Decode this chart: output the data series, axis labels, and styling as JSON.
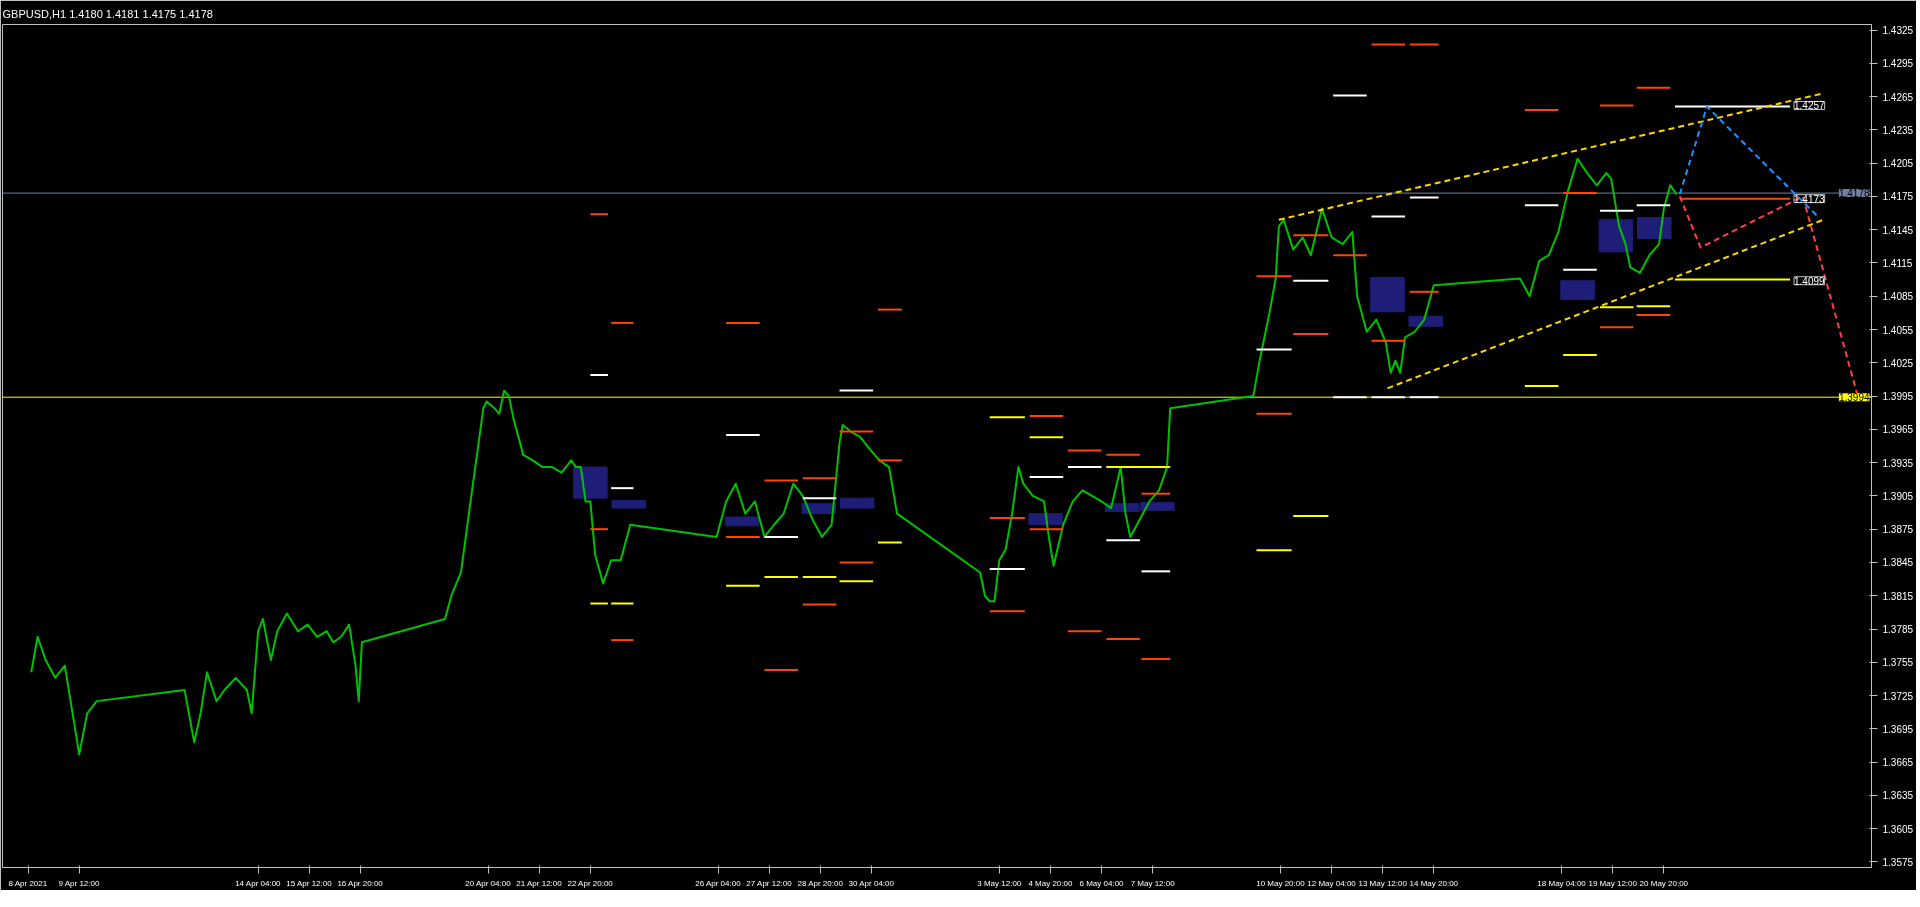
{
  "chart_data": {
    "type": "line",
    "title": "GBPUSD,H1  1.4180 1.4181 1.4175 1.4178",
    "xlim": [
      "2021-04-07T12:00",
      "2021-05-26T06:00"
    ],
    "ylim": [
      1.357,
      1.433
    ],
    "xticks": [
      {
        "value": "2021-04-08T04:00",
        "label": "8 Apr 2021"
      },
      {
        "value": "2021-04-09T12:00",
        "label": "9 Apr 12:00"
      },
      {
        "value": "2021-04-14T04:00",
        "label": "14 Apr 04:00"
      },
      {
        "value": "2021-04-15T12:00",
        "label": "15 Apr 12:00"
      },
      {
        "value": "2021-04-16T20:00",
        "label": "16 Apr 20:00"
      },
      {
        "value": "2021-04-20T04:00",
        "label": "20 Apr 04:00"
      },
      {
        "value": "2021-04-21T12:00",
        "label": "21 Apr 12:00"
      },
      {
        "value": "2021-04-22T20:00",
        "label": "22 Apr 20:00"
      },
      {
        "value": "2021-04-26T04:00",
        "label": "26 Apr 04:00"
      },
      {
        "value": "2021-04-27T12:00",
        "label": "27 Apr 12:00"
      },
      {
        "value": "2021-04-28T20:00",
        "label": "28 Apr 20:00"
      },
      {
        "value": "2021-04-30T04:00",
        "label": "30 Apr 04:00"
      },
      {
        "value": "2021-05-03T12:00",
        "label": "3 May 12:00"
      },
      {
        "value": "2021-05-04T20:00",
        "label": "4 May 20:00"
      },
      {
        "value": "2021-05-06T04:00",
        "label": "6 May 04:00"
      },
      {
        "value": "2021-05-07T12:00",
        "label": "7 May 12:00"
      },
      {
        "value": "2021-05-10T20:00",
        "label": "10 May 20:00"
      },
      {
        "value": "2021-05-12T04:00",
        "label": "12 May 04:00"
      },
      {
        "value": "2021-05-13T12:00",
        "label": "13 May 12:00"
      },
      {
        "value": "2021-05-14T20:00",
        "label": "14 May 20:00"
      },
      {
        "value": "2021-05-18T04:00",
        "label": "18 May 04:00"
      },
      {
        "value": "2021-05-19T12:00",
        "label": "19 May 12:00"
      },
      {
        "value": "2021-05-20T20:00",
        "label": "20 May 20:00"
      }
    ],
    "yticks": [
      1.3575,
      1.3605,
      1.3635,
      1.3665,
      1.3695,
      1.3725,
      1.3755,
      1.3785,
      1.3815,
      1.3845,
      1.3875,
      1.3905,
      1.3935,
      1.3965,
      1.3995,
      1.4025,
      1.4055,
      1.4085,
      1.4115,
      1.4145,
      1.4175,
      1.4205,
      1.4235,
      1.4265,
      1.4295,
      1.4325
    ],
    "ref_lines": [
      {
        "axis": "y",
        "value": 1.3994,
        "label": "1.3994",
        "color": "#ffff00"
      },
      {
        "axis": "y",
        "value": 1.4178,
        "label": "1.4178",
        "color": "#7080a0"
      }
    ],
    "annotations": [
      {
        "text": "1.4257",
        "x": "2021-05-24T03:00",
        "y": 1.4257
      },
      {
        "text": "1.4173",
        "x": "2021-05-24T03:00",
        "y": 1.4173
      },
      {
        "text": "1.4099",
        "x": "2021-05-24T03:00",
        "y": 1.4099
      }
    ],
    "series": [
      {
        "type": "bar",
        "color": "#1e1e78",
        "x": [
          "2021-04-22T20:00",
          "2021-04-23T20:00",
          "2021-04-26T19:00",
          "2021-04-28T19:00",
          "2021-04-29T19:00",
          "2021-05-04T17:00",
          "2021-05-06T17:00",
          "2021-05-07T15:00",
          "2021-05-13T15:00",
          "2021-05-14T15:00",
          "2021-05-18T14:00",
          "2021-05-19T14:00",
          "2021-05-20T14:00"
        ],
        "base": [
          1.3903,
          1.3894,
          1.3878,
          1.3889,
          1.3894,
          1.3879,
          1.3891,
          1.3892,
          1.4071,
          1.4058,
          1.4082,
          1.4125,
          1.4137
        ],
        "values": [
          0.0028,
          0.0007,
          0.0008,
          0.0009,
          0.0009,
          0.001,
          0.0007,
          0.0007,
          0.0031,
          0.0009,
          0.0017,
          0.0029,
          0.0019
        ]
      },
      {
        "color": "#00c000",
        "x": [
          "2021-04-08T06:00",
          "2021-04-08T10:00",
          "2021-04-08T15:00",
          "2021-04-08T21:00",
          "2021-04-09T03:00",
          "2021-04-09T09:00",
          "2021-04-09T12:00",
          "2021-04-09T17:00",
          "2021-04-09T23:00",
          "2021-04-12T06:00",
          "2021-04-12T12:00",
          "2021-04-12T16:00",
          "2021-04-12T20:00",
          "2021-04-13T02:00",
          "2021-04-13T07:00",
          "2021-04-13T14:00",
          "2021-04-13T21:00",
          "2021-04-14T00:00",
          "2021-04-14T04:00",
          "2021-04-14T07:00",
          "2021-04-14T12:00",
          "2021-04-14T16:00",
          "2021-04-14T22:00",
          "2021-04-15T05:00",
          "2021-04-15T11:00",
          "2021-04-15T17:00",
          "2021-04-15T23:00",
          "2021-04-16T03:00",
          "2021-04-16T08:00",
          "2021-04-16T13:00",
          "2021-04-16T17:00",
          "2021-04-16T19:00",
          "2021-04-16T21:00",
          "2021-04-19T01:00",
          "2021-04-19T05:00",
          "2021-04-19T11:00",
          "2021-04-19T17:00",
          "2021-04-19T21:00",
          "2021-04-20T01:00",
          "2021-04-20T03:00",
          "2021-04-20T08:00",
          "2021-04-20T11:00",
          "2021-04-20T14:00",
          "2021-04-20T17:00",
          "2021-04-20T20:00",
          "2021-04-21T02:00",
          "2021-04-21T08:00",
          "2021-04-21T14:00",
          "2021-04-21T20:00",
          "2021-04-22T02:00",
          "2021-04-22T08:00",
          "2021-04-22T11:00",
          "2021-04-22T14:00",
          "2021-04-22T17:00",
          "2021-04-22T20:00",
          "2021-04-22T23:00",
          "2021-04-23T04:00",
          "2021-04-23T09:00",
          "2021-04-23T15:00",
          "2021-04-23T21:00",
          "2021-04-26T03:00",
          "2021-04-26T09:00",
          "2021-04-26T15:00",
          "2021-04-26T21:00",
          "2021-04-27T03:00",
          "2021-04-27T09:00",
          "2021-04-27T15:00",
          "2021-04-27T21:00",
          "2021-04-28T03:00",
          "2021-04-28T09:00",
          "2021-04-28T15:00",
          "2021-04-28T21:00",
          "2021-04-29T03:00",
          "2021-04-29T08:00",
          "2021-04-29T10:00",
          "2021-04-29T15:00",
          "2021-04-29T21:00",
          "2021-04-30T03:00",
          "2021-04-30T09:00",
          "2021-04-30T15:00",
          "2021-04-30T20:00",
          "2021-05-03T00:00",
          "2021-05-03T03:00",
          "2021-05-03T06:00",
          "2021-05-03T09:00",
          "2021-05-03T12:00",
          "2021-05-03T16:00",
          "2021-05-03T20:00",
          "2021-05-04T00:00",
          "2021-05-04T03:00",
          "2021-05-04T09:00",
          "2021-05-04T16:00",
          "2021-05-04T19:00",
          "2021-05-04T22:00",
          "2021-05-05T04:00",
          "2021-05-05T10:00",
          "2021-05-05T16:00",
          "2021-05-05T22:00",
          "2021-05-06T04:00",
          "2021-05-06T10:00",
          "2021-05-06T16:00",
          "2021-05-06T19:00",
          "2021-05-06T22:00",
          "2021-05-07T04:00",
          "2021-05-07T10:00",
          "2021-05-07T16:00",
          "2021-05-07T21:00",
          "2021-05-07T23:00",
          "2021-05-10T03:00",
          "2021-05-10T07:00",
          "2021-05-10T10:00",
          "2021-05-10T13:00",
          "2021-05-10T17:00",
          "2021-05-10T19:00",
          "2021-05-10T22:00",
          "2021-05-11T04:00",
          "2021-05-11T10:00",
          "2021-05-11T15:00",
          "2021-05-11T22:00",
          "2021-05-12T04:00",
          "2021-05-12T11:00",
          "2021-05-12T17:00",
          "2021-05-12T20:00",
          "2021-05-13T02:00",
          "2021-05-13T08:00",
          "2021-05-13T14:00",
          "2021-05-13T17:00",
          "2021-05-13T20:00",
          "2021-05-13T23:00",
          "2021-05-14T02:00",
          "2021-05-14T08:00",
          "2021-05-14T14:00",
          "2021-05-14T20:00",
          "2021-05-17T02:00",
          "2021-05-17T08:00",
          "2021-05-17T14:00",
          "2021-05-17T20:00",
          "2021-05-18T02:00",
          "2021-05-18T08:00",
          "2021-05-18T14:00",
          "2021-05-18T20:00",
          "2021-05-19T02:00",
          "2021-05-19T08:00",
          "2021-05-19T11:00",
          "2021-05-19T16:00",
          "2021-05-19T20:00",
          "2021-05-19T23:00",
          "2021-05-20T05:00",
          "2021-05-20T11:00",
          "2021-05-20T17:00",
          "2021-05-20T20:00",
          "2021-05-21T00:00",
          "2021-05-21T04:00"
        ],
        "values": [
          1.3746,
          1.3778,
          1.3757,
          1.3741,
          1.3752,
          1.3699,
          1.3672,
          1.3709,
          1.372,
          1.373,
          1.3683,
          1.3709,
          1.3746,
          1.372,
          1.373,
          1.3741,
          1.373,
          1.3709,
          1.3783,
          1.3794,
          1.3757,
          1.3783,
          1.3799,
          1.3783,
          1.3789,
          1.3778,
          1.3783,
          1.3773,
          1.3778,
          1.3789,
          1.3752,
          1.372,
          1.3773,
          1.3794,
          1.3815,
          1.3836,
          1.39,
          1.3942,
          1.3984,
          1.399,
          1.3984,
          1.3979,
          1.4,
          1.3995,
          1.3974,
          1.3942,
          1.3937,
          1.3931,
          1.3931,
          1.3926,
          1.3937,
          1.3931,
          1.3931,
          1.39,
          1.39,
          1.3852,
          1.3826,
          1.3847,
          1.3847,
          1.3879,
          1.3868,
          1.39,
          1.3916,
          1.3889,
          1.39,
          1.3868,
          1.3879,
          1.3889,
          1.3916,
          1.3905,
          1.3884,
          1.3868,
          1.3879,
          1.3953,
          1.3969,
          1.3963,
          1.3958,
          1.3947,
          1.3937,
          1.3931,
          1.3889,
          1.3836,
          1.3815,
          1.381,
          1.381,
          1.3847,
          1.3857,
          1.3889,
          1.3931,
          1.3916,
          1.3905,
          1.39,
          1.3868,
          1.3842,
          1.3879,
          1.39,
          1.391,
          1.3905,
          1.39,
          1.3894,
          1.3931,
          1.3889,
          1.3868,
          1.3884,
          1.39,
          1.391,
          1.3931,
          1.3984,
          1.3995,
          1.4027,
          1.4048,
          1.4069,
          1.4101,
          1.4148,
          1.4154,
          1.4127,
          1.4138,
          1.4122,
          1.4164,
          1.4138,
          1.4132,
          1.4143,
          1.4085,
          1.4053,
          1.4064,
          1.4043,
          1.4016,
          1.4027,
          1.4016,
          1.4048,
          1.4053,
          1.4064,
          1.4095,
          1.4101,
          1.4085,
          1.4117,
          1.4122,
          1.4143,
          1.418,
          1.4209,
          1.4196,
          1.4185,
          1.4196,
          1.4191,
          1.4148,
          1.4132,
          1.4111,
          1.4106,
          1.4122,
          1.4132,
          1.4164,
          1.4185,
          1.4177
        ]
      },
      {
        "type": "line",
        "color": "#ff4500",
        "x": [
          "2021-04-22T20:00",
          "2021-04-23T07:00"
        ],
        "values": [
          1.4159,
          1.4159
        ]
      },
      {
        "type": "line",
        "color": "#ff4500",
        "x": [
          "2021-04-22T20:00",
          "2021-04-23T07:00"
        ],
        "values": [
          1.3875,
          1.3875
        ]
      },
      {
        "type": "line",
        "color": "#ff4500",
        "x": [
          "2021-04-23T09:00",
          "2021-04-23T23:00"
        ],
        "values": [
          1.4061,
          1.4061
        ]
      },
      {
        "type": "line",
        "color": "#ff4500",
        "x": [
          "2021-04-23T09:00",
          "2021-04-23T23:00"
        ],
        "values": [
          1.3775,
          1.3775
        ]
      },
      {
        "type": "line",
        "color": "#ff4500",
        "x": [
          "2021-04-26T09:00",
          "2021-04-27T06:00"
        ],
        "values": [
          1.4061,
          1.4061
        ]
      },
      {
        "type": "line",
        "color": "#ff4500",
        "x": [
          "2021-04-26T09:00",
          "2021-04-27T06:00"
        ],
        "values": [
          1.3868,
          1.3868
        ]
      },
      {
        "type": "line",
        "color": "#ff4500",
        "x": [
          "2021-04-27T09:00",
          "2021-04-28T06:00"
        ],
        "values": [
          1.3919,
          1.3919
        ]
      },
      {
        "type": "line",
        "color": "#ff4500",
        "x": [
          "2021-04-27T09:00",
          "2021-04-28T06:00"
        ],
        "values": [
          1.3748,
          1.3748
        ]
      },
      {
        "type": "line",
        "color": "#ff4500",
        "x": [
          "2021-04-28T09:00",
          "2021-04-29T06:00"
        ],
        "values": [
          1.3921,
          1.3921
        ]
      },
      {
        "type": "line",
        "color": "#ff4500",
        "x": [
          "2021-04-28T09:00",
          "2021-04-29T06:00"
        ],
        "values": [
          1.3807,
          1.3807
        ]
      },
      {
        "type": "line",
        "color": "#ff4500",
        "x": [
          "2021-04-29T08:00",
          "2021-04-30T05:00"
        ],
        "values": [
          1.3963,
          1.3963
        ]
      },
      {
        "type": "line",
        "color": "#ff4500",
        "x": [
          "2021-04-29T08:00",
          "2021-04-30T05:00"
        ],
        "values": [
          1.3845,
          1.3845
        ]
      },
      {
        "type": "line",
        "color": "#ff4500",
        "x": [
          "2021-04-30T08:00",
          "2021-04-30T23:00"
        ],
        "values": [
          1.4073,
          1.4073
        ]
      },
      {
        "type": "line",
        "color": "#ff4500",
        "x": [
          "2021-04-30T08:00",
          "2021-04-30T23:00"
        ],
        "values": [
          1.3937,
          1.3937
        ]
      },
      {
        "type": "line",
        "color": "#ff4500",
        "x": [
          "2021-05-03T06:00",
          "2021-05-04T04:00"
        ],
        "values": [
          1.3885,
          1.3885
        ]
      },
      {
        "type": "line",
        "color": "#ff4500",
        "x": [
          "2021-05-03T06:00",
          "2021-05-04T04:00"
        ],
        "values": [
          1.3801,
          1.3801
        ]
      },
      {
        "type": "line",
        "color": "#ff4500",
        "x": [
          "2021-05-04T07:00",
          "2021-05-05T04:00"
        ],
        "values": [
          1.3977,
          1.3977
        ]
      },
      {
        "type": "line",
        "color": "#ff4500",
        "x": [
          "2021-05-04T07:00",
          "2021-05-05T04:00"
        ],
        "values": [
          1.3875,
          1.3875
        ]
      },
      {
        "type": "line",
        "color": "#ff4500",
        "x": [
          "2021-05-05T07:00",
          "2021-05-06T04:00"
        ],
        "values": [
          1.3946,
          1.3946
        ]
      },
      {
        "type": "line",
        "color": "#ff4500",
        "x": [
          "2021-05-05T07:00",
          "2021-05-06T04:00"
        ],
        "values": [
          1.3783,
          1.3783
        ]
      },
      {
        "type": "line",
        "color": "#ff4500",
        "x": [
          "2021-05-06T07:00",
          "2021-05-07T04:00"
        ],
        "values": [
          1.3942,
          1.3942
        ]
      },
      {
        "type": "line",
        "color": "#ff4500",
        "x": [
          "2021-05-06T07:00",
          "2021-05-07T04:00"
        ],
        "values": [
          1.3776,
          1.3776
        ]
      },
      {
        "type": "line",
        "color": "#ff4500",
        "x": [
          "2021-05-07T05:00",
          "2021-05-07T23:00"
        ],
        "values": [
          1.3907,
          1.3907
        ]
      },
      {
        "type": "line",
        "color": "#ff4500",
        "x": [
          "2021-05-07T05:00",
          "2021-05-07T23:00"
        ],
        "values": [
          1.3758,
          1.3758
        ]
      },
      {
        "type": "line",
        "color": "#ff4500",
        "x": [
          "2021-05-10T05:00",
          "2021-05-11T03:00"
        ],
        "values": [
          1.3979,
          1.3979
        ]
      },
      {
        "type": "line",
        "color": "#ff4500",
        "x": [
          "2021-05-10T05:00",
          "2021-05-11T03:00"
        ],
        "values": [
          1.4103,
          1.4103
        ]
      },
      {
        "type": "line",
        "color": "#ff4500",
        "x": [
          "2021-05-11T04:00",
          "2021-05-12T02:00"
        ],
        "values": [
          1.4051,
          1.4051
        ]
      },
      {
        "type": "line",
        "color": "#ff4500",
        "x": [
          "2021-05-11T04:00",
          "2021-05-12T02:00"
        ],
        "values": [
          1.414,
          1.414
        ]
      },
      {
        "type": "line",
        "color": "#ff4500",
        "x": [
          "2021-05-12T05:00",
          "2021-05-13T02:00"
        ],
        "values": [
          1.4122,
          1.4122
        ]
      },
      {
        "type": "line",
        "color": "#ff4500",
        "x": [
          "2021-05-13T05:00",
          "2021-05-14T02:00"
        ],
        "values": [
          1.4312,
          1.4312
        ]
      },
      {
        "type": "line",
        "color": "#ff4500",
        "x": [
          "2021-05-13T05:00",
          "2021-05-14T02:00"
        ],
        "values": [
          1.4045,
          1.4045
        ]
      },
      {
        "type": "line",
        "color": "#ff4500",
        "x": [
          "2021-05-14T05:00",
          "2021-05-14T23:00"
        ],
        "values": [
          1.4312,
          1.4312
        ]
      },
      {
        "type": "line",
        "color": "#ff4500",
        "x": [
          "2021-05-14T05:00",
          "2021-05-14T23:00"
        ],
        "values": [
          1.4089,
          1.4089
        ]
      },
      {
        "type": "line",
        "color": "#ff4500",
        "x": [
          "2021-05-17T05:00",
          "2021-05-18T02:00"
        ],
        "values": [
          1.4253,
          1.4253
        ]
      },
      {
        "type": "line",
        "color": "#ff4500",
        "x": [
          "2021-05-18T05:00",
          "2021-05-19T02:00"
        ],
        "values": [
          1.4178,
          1.4178
        ]
      },
      {
        "type": "line",
        "color": "#ff4500",
        "x": [
          "2021-05-19T04:00",
          "2021-05-20T01:00"
        ],
        "values": [
          1.4257,
          1.4257
        ]
      },
      {
        "type": "line",
        "color": "#ff4500",
        "x": [
          "2021-05-19T04:00",
          "2021-05-20T01:00"
        ],
        "values": [
          1.4057,
          1.4057
        ]
      },
      {
        "type": "line",
        "color": "#ff4500",
        "x": [
          "2021-05-20T03:00",
          "2021-05-21T00:00"
        ],
        "values": [
          1.4273,
          1.4273
        ]
      },
      {
        "type": "line",
        "color": "#ff4500",
        "x": [
          "2021-05-20T03:00",
          "2021-05-21T00:00"
        ],
        "values": [
          1.4068,
          1.4068
        ]
      },
      {
        "type": "line",
        "color": "#ff4500",
        "x": [
          "2021-05-21T06:00",
          "2021-05-24T03:00"
        ],
        "values": [
          1.4173,
          1.4173
        ]
      },
      {
        "type": "line",
        "color": "#ffffff",
        "x": [
          "2021-04-22T20:00",
          "2021-04-23T07:00"
        ],
        "values": [
          1.4014,
          1.4014
        ]
      },
      {
        "type": "line",
        "color": "#ffffff",
        "x": [
          "2021-04-23T09:00",
          "2021-04-23T23:00"
        ],
        "values": [
          1.3912,
          1.3912
        ]
      },
      {
        "type": "line",
        "color": "#ffffff",
        "x": [
          "2021-04-26T09:00",
          "2021-04-27T06:00"
        ],
        "values": [
          1.396,
          1.396
        ]
      },
      {
        "type": "line",
        "color": "#ffffff",
        "x": [
          "2021-04-27T09:00",
          "2021-04-28T06:00"
        ],
        "values": [
          1.3868,
          1.3868
        ]
      },
      {
        "type": "line",
        "color": "#ffffff",
        "x": [
          "2021-04-28T09:00",
          "2021-04-29T06:00"
        ],
        "values": [
          1.3903,
          1.3903
        ]
      },
      {
        "type": "line",
        "color": "#ffffff",
        "x": [
          "2021-04-29T08:00",
          "2021-04-30T05:00"
        ],
        "values": [
          1.4,
          1.4
        ]
      },
      {
        "type": "line",
        "color": "#ffffff",
        "x": [
          "2021-05-03T06:00",
          "2021-05-04T04:00"
        ],
        "values": [
          1.3839,
          1.3839
        ]
      },
      {
        "type": "line",
        "color": "#ffffff",
        "x": [
          "2021-05-04T07:00",
          "2021-05-05T04:00"
        ],
        "values": [
          1.3922,
          1.3922
        ]
      },
      {
        "type": "line",
        "color": "#ffffff",
        "x": [
          "2021-05-05T07:00",
          "2021-05-06T04:00"
        ],
        "values": [
          1.3931,
          1.3931
        ]
      },
      {
        "type": "line",
        "color": "#ffffff",
        "x": [
          "2021-05-06T07:00",
          "2021-05-07T04:00"
        ],
        "values": [
          1.3865,
          1.3865
        ]
      },
      {
        "type": "line",
        "color": "#ffffff",
        "x": [
          "2021-05-07T05:00",
          "2021-05-07T23:00"
        ],
        "values": [
          1.3837,
          1.3837
        ]
      },
      {
        "type": "line",
        "color": "#ffffff",
        "x": [
          "2021-05-10T05:00",
          "2021-05-11T03:00"
        ],
        "values": [
          1.4037,
          1.4037
        ]
      },
      {
        "type": "line",
        "color": "#ffffff",
        "x": [
          "2021-05-11T04:00",
          "2021-05-12T02:00"
        ],
        "values": [
          1.4099,
          1.4099
        ]
      },
      {
        "type": "line",
        "color": "#ffffff",
        "x": [
          "2021-05-12T05:00",
          "2021-05-13T02:00"
        ],
        "values": [
          1.4266,
          1.4266
        ]
      },
      {
        "type": "line",
        "color": "#ffffff",
        "x": [
          "2021-05-13T05:00",
          "2021-05-14T02:00"
        ],
        "values": [
          1.4157,
          1.4157
        ]
      },
      {
        "type": "line",
        "color": "#ffffff",
        "x": [
          "2021-05-14T05:00",
          "2021-05-14T23:00"
        ],
        "values": [
          1.4174,
          1.4174
        ]
      },
      {
        "type": "line",
        "color": "#ffffff",
        "x": [
          "2021-05-17T05:00",
          "2021-05-18T02:00"
        ],
        "values": [
          1.4167,
          1.4167
        ]
      },
      {
        "type": "line",
        "color": "#ffffff",
        "x": [
          "2021-05-18T05:00",
          "2021-05-19T02:00"
        ],
        "values": [
          1.4109,
          1.4109
        ]
      },
      {
        "type": "line",
        "color": "#ffffff",
        "x": [
          "2021-05-19T04:00",
          "2021-05-20T01:00"
        ],
        "values": [
          1.4162,
          1.4162
        ]
      },
      {
        "type": "line",
        "color": "#ffffff",
        "x": [
          "2021-05-20T03:00",
          "2021-05-21T00:00"
        ],
        "values": [
          1.4167,
          1.4167
        ]
      },
      {
        "type": "line",
        "color": "#ffffff",
        "x": [
          "2021-05-21T03:00",
          "2021-05-24T03:00"
        ],
        "values": [
          1.4256,
          1.4256
        ]
      },
      {
        "type": "line",
        "color": "#ffffff",
        "x": [
          "2021-05-12T05:00",
          "2021-05-13T02:00"
        ],
        "values": [
          1.3994,
          1.3994
        ]
      },
      {
        "type": "line",
        "color": "#ffffff",
        "x": [
          "2021-05-13T05:00",
          "2021-05-14T02:00"
        ],
        "values": [
          1.3994,
          1.3994
        ]
      },
      {
        "type": "line",
        "color": "#ffffff",
        "x": [
          "2021-05-14T05:00",
          "2021-05-14T23:00"
        ],
        "values": [
          1.3994,
          1.3994
        ]
      },
      {
        "type": "line",
        "color": "#ffff00",
        "x": [
          "2021-04-22T20:00",
          "2021-04-23T07:00"
        ],
        "values": [
          1.3808,
          1.3808
        ]
      },
      {
        "type": "line",
        "color": "#ffff00",
        "x": [
          "2021-04-23T09:00",
          "2021-04-23T23:00"
        ],
        "values": [
          1.3808,
          1.3808
        ]
      },
      {
        "type": "line",
        "color": "#ffff00",
        "x": [
          "2021-04-26T09:00",
          "2021-04-27T06:00"
        ],
        "values": [
          1.3824,
          1.3824
        ]
      },
      {
        "type": "line",
        "color": "#ffff00",
        "x": [
          "2021-04-27T09:00",
          "2021-04-28T06:00"
        ],
        "values": [
          1.3832,
          1.3832
        ]
      },
      {
        "type": "line",
        "color": "#ffff00",
        "x": [
          "2021-04-28T09:00",
          "2021-04-29T06:00"
        ],
        "values": [
          1.3832,
          1.3832
        ]
      },
      {
        "type": "line",
        "color": "#ffff00",
        "x": [
          "2021-04-29T08:00",
          "2021-04-30T05:00"
        ],
        "values": [
          1.3828,
          1.3828
        ]
      },
      {
        "type": "line",
        "color": "#ffff00",
        "x": [
          "2021-04-30T08:00",
          "2021-04-30T23:00"
        ],
        "values": [
          1.3863,
          1.3863
        ]
      },
      {
        "type": "line",
        "color": "#ffff00",
        "x": [
          "2021-05-03T06:00",
          "2021-05-04T04:00"
        ],
        "values": [
          1.3976,
          1.3976
        ]
      },
      {
        "type": "line",
        "color": "#ffff00",
        "x": [
          "2021-05-04T07:00",
          "2021-05-05T04:00"
        ],
        "values": [
          1.3958,
          1.3958
        ]
      },
      {
        "type": "line",
        "color": "#ffff00",
        "x": [
          "2021-05-06T07:00",
          "2021-05-07T23:00"
        ],
        "values": [
          1.3931,
          1.3931
        ]
      },
      {
        "type": "line",
        "color": "#ffff00",
        "x": [
          "2021-05-10T05:00",
          "2021-05-11T03:00"
        ],
        "values": [
          1.3856,
          1.3856
        ]
      },
      {
        "type": "line",
        "color": "#ffff00",
        "x": [
          "2021-05-11T04:00",
          "2021-05-12T02:00"
        ],
        "values": [
          1.3887,
          1.3887
        ]
      },
      {
        "type": "line",
        "color": "#ffff00",
        "x": [
          "2021-05-17T05:00",
          "2021-05-18T02:00"
        ],
        "values": [
          1.4004,
          1.4004
        ]
      },
      {
        "type": "line",
        "color": "#ffff00",
        "x": [
          "2021-05-18T05:00",
          "2021-05-19T02:00"
        ],
        "values": [
          1.4032,
          1.4032
        ]
      },
      {
        "type": "line",
        "color": "#ffff00",
        "x": [
          "2021-05-19T04:00",
          "2021-05-20T01:00"
        ],
        "values": [
          1.4075,
          1.4075
        ]
      },
      {
        "type": "line",
        "color": "#ffff00",
        "x": [
          "2021-05-20T03:00",
          "2021-05-21T00:00"
        ],
        "values": [
          1.4076,
          1.4076
        ]
      },
      {
        "type": "line",
        "color": "#ffff00",
        "x": [
          "2021-05-21T03:00",
          "2021-05-24T03:00"
        ],
        "values": [
          1.41,
          1.41
        ]
      },
      {
        "type": "line",
        "color": "#ffd700",
        "line_style": "dashed",
        "x": [
          "2021-05-10T19:00",
          "2021-05-25T00:00"
        ],
        "values": [
          1.4154,
          1.4268
        ]
      },
      {
        "type": "line",
        "color": "#ffd700",
        "line_style": "dashed",
        "x": [
          "2021-05-13T15:00",
          "2021-05-25T00:00"
        ],
        "values": [
          1.4002,
          1.4154
        ]
      },
      {
        "type": "line",
        "color": "#1e90ff",
        "line_style": "dashed",
        "x": [
          "2021-05-21T06:00",
          "2021-05-21T23:00",
          "2021-05-24T21:00"
        ],
        "values": [
          1.4177,
          1.4256,
          1.4156
        ]
      },
      {
        "type": "line",
        "color": "#ff4040",
        "line_style": "dashed",
        "x": [
          "2021-05-21T06:00",
          "2021-05-21T19:00",
          "2021-05-24T11:00",
          "2021-05-25T21:00"
        ],
        "values": [
          1.4175,
          1.4129,
          1.4175,
          1.3997
        ]
      }
    ]
  }
}
